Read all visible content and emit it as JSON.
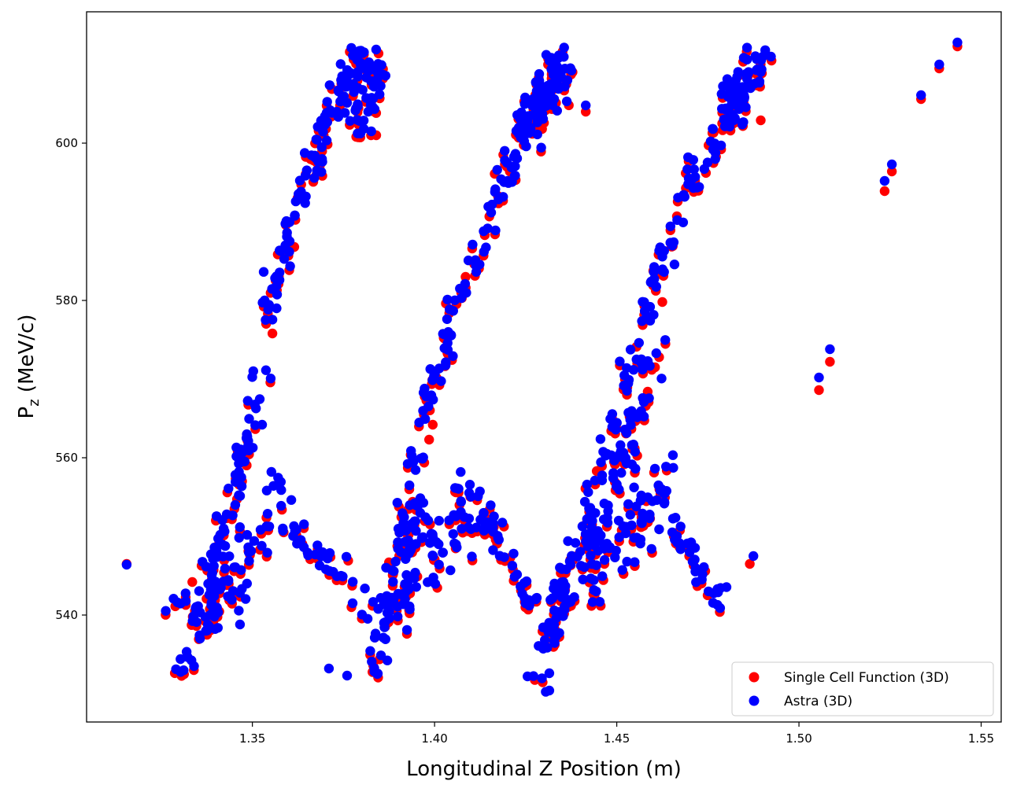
{
  "chart_data": {
    "type": "scatter",
    "title": "",
    "xlabel": "Longitudinal Z Position (m)",
    "ylabel_main": "P",
    "ylabel_sub": "z",
    "ylabel_rest": " (MeV/c)",
    "xlim": [
      1.3045,
      1.5555
    ],
    "ylim": [
      526.4,
      616.7
    ],
    "xticks": [
      1.35,
      1.4,
      1.45,
      1.5,
      1.55
    ],
    "xtick_labels": [
      "1.35",
      "1.40",
      "1.45",
      "1.50",
      "1.55"
    ],
    "yticks": [
      540,
      560,
      580,
      600
    ],
    "ytick_labels": [
      "540",
      "560",
      "580",
      "600"
    ],
    "grid": false,
    "legend_position": "lower-right",
    "series": [
      {
        "name": "Single Cell Function (3D)",
        "color": "#ff0000",
        "dy": -0.5,
        "points": [
          [
            1.3155,
            547.0
          ],
          [
            1.349,
            567.3
          ],
          [
            1.34,
            552.5
          ],
          [
            1.3335,
            544.7
          ],
          [
            1.3555,
            576.3
          ],
          [
            1.3615,
            587.3
          ],
          [
            1.3785,
            601.3
          ],
          [
            1.384,
            601.5
          ],
          [
            1.3875,
            547.2
          ],
          [
            1.3925,
            550.8
          ],
          [
            1.394,
            554.9
          ],
          [
            1.4035,
            573.9
          ],
          [
            1.4075,
            580.8
          ],
          [
            1.4085,
            583.5
          ],
          [
            1.3985,
            562.8
          ],
          [
            1.3995,
            564.7
          ],
          [
            1.4295,
            602.3
          ],
          [
            1.4415,
            604.5
          ],
          [
            1.438,
            547.5
          ],
          [
            1.4565,
            565.5
          ],
          [
            1.4585,
            568.9
          ],
          [
            1.4605,
            572.0
          ],
          [
            1.4665,
            591.2
          ],
          [
            1.4625,
            580.3
          ],
          [
            1.4445,
            558.8
          ],
          [
            1.4865,
            547.0
          ],
          [
            1.4895,
            603.4
          ],
          [
            1.5235,
            594.4
          ],
          [
            1.5255,
            596.9
          ],
          [
            1.5055,
            569.1
          ],
          [
            1.5085,
            572.7
          ],
          [
            1.5335,
            606.1
          ],
          [
            1.5385,
            610.0
          ],
          [
            1.5435,
            612.8
          ],
          [
            1.4375,
            547.6
          ]
        ]
      },
      {
        "name": "Astra (3D)",
        "color": "#0000ff",
        "dy": 0,
        "points": [
          [
            1.3155,
            546.4
          ],
          [
            1.5435,
            612.8
          ],
          [
            1.5385,
            610.0
          ],
          [
            1.5335,
            606.1
          ],
          [
            1.5255,
            597.3
          ],
          [
            1.5235,
            595.2
          ],
          [
            1.5085,
            573.8
          ],
          [
            1.5055,
            570.2
          ],
          [
            1.4875,
            547.5
          ],
          [
            1.4415,
            604.8
          ],
          [
            1.371,
            533.2
          ],
          [
            1.376,
            532.3
          ],
          [
            1.3835,
            532.8
          ],
          [
            1.4255,
            532.2
          ],
          [
            1.4315,
            530.4
          ],
          [
            1.4315,
            532.6
          ]
        ]
      }
    ],
    "clusters": [
      {
        "series": 1,
        "n": 95,
        "seed": 11,
        "x0": 1.3545,
        "y0": 578.0,
        "x1": 1.38,
        "y1": 611.5,
        "curve": -0.45,
        "spread": 1.4
      },
      {
        "series": 1,
        "n": 40,
        "seed": 12,
        "x0": 1.377,
        "y0": 604.0,
        "x1": 1.385,
        "y1": 609.0,
        "curve": 0.0,
        "spread": 2.2
      },
      {
        "series": 1,
        "n": 120,
        "seed": 13,
        "x0": 1.395,
        "y0": 560.5,
        "x1": 1.434,
        "y1": 609.5,
        "curve": -0.4,
        "spread": 1.6
      },
      {
        "series": 1,
        "n": 50,
        "seed": 14,
        "x0": 1.423,
        "y0": 601.0,
        "x1": 1.437,
        "y1": 609.5,
        "curve": 0.0,
        "spread": 2.0
      },
      {
        "series": 1,
        "n": 110,
        "seed": 15,
        "x0": 1.4455,
        "y0": 558.0,
        "x1": 1.488,
        "y1": 610.5,
        "curve": -0.4,
        "spread": 1.6
      },
      {
        "series": 1,
        "n": 45,
        "seed": 16,
        "x0": 1.48,
        "y0": 603.5,
        "x1": 1.492,
        "y1": 611.0,
        "curve": 0.0,
        "spread": 2.0
      },
      {
        "series": 1,
        "n": 60,
        "seed": 21,
        "x0": 1.333,
        "y0": 533.5,
        "x1": 1.3475,
        "y1": 562.5,
        "curve": 0.0,
        "spread": 2.8
      },
      {
        "series": 1,
        "n": 25,
        "seed": 22,
        "x0": 1.346,
        "y0": 556.0,
        "x1": 1.3525,
        "y1": 570.5,
        "curve": 0.0,
        "spread": 1.2
      },
      {
        "series": 1,
        "n": 55,
        "seed": 23,
        "x0": 1.338,
        "y0": 541.0,
        "x1": 1.358,
        "y1": 555.5,
        "curve": 0.15,
        "spread": 2.6
      },
      {
        "series": 1,
        "n": 30,
        "seed": 24,
        "x0": 1.359,
        "y0": 551.5,
        "x1": 1.38,
        "y1": 541.5,
        "curve": 0.2,
        "spread": 1.0
      },
      {
        "series": 1,
        "n": 6,
        "seed": 25,
        "x0": 1.327,
        "y0": 541.0,
        "x1": 1.332,
        "y1": 542.3,
        "curve": 0.0,
        "spread": 0.3
      },
      {
        "series": 1,
        "n": 6,
        "seed": 26,
        "x0": 1.3285,
        "y0": 533.0,
        "x1": 1.334,
        "y1": 534.0,
        "curve": 0.0,
        "spread": 0.6
      },
      {
        "series": 1,
        "n": 70,
        "seed": 31,
        "x0": 1.383,
        "y0": 534.5,
        "x1": 1.396,
        "y1": 556.0,
        "curve": 0.0,
        "spread": 3.0
      },
      {
        "series": 1,
        "n": 60,
        "seed": 32,
        "x0": 1.389,
        "y0": 543.0,
        "x1": 1.413,
        "y1": 556.0,
        "curve": 0.2,
        "spread": 2.6
      },
      {
        "series": 1,
        "n": 30,
        "seed": 33,
        "x0": 1.412,
        "y0": 553.5,
        "x1": 1.425,
        "y1": 541.8,
        "curve": 0.25,
        "spread": 1.2
      },
      {
        "series": 1,
        "n": 8,
        "seed": 34,
        "x0": 1.423,
        "y0": 541.8,
        "x1": 1.429,
        "y1": 541.8,
        "curve": 0.0,
        "spread": 0.3
      },
      {
        "series": 1,
        "n": 70,
        "seed": 41,
        "x0": 1.429,
        "y0": 535.0,
        "x1": 1.444,
        "y1": 552.5,
        "curve": 0.0,
        "spread": 3.0
      },
      {
        "series": 1,
        "n": 35,
        "seed": 42,
        "x0": 1.443,
        "y0": 550.0,
        "x1": 1.454,
        "y1": 562.5,
        "curve": 0.0,
        "spread": 2.2
      },
      {
        "series": 1,
        "n": 65,
        "seed": 43,
        "x0": 1.442,
        "y0": 546.0,
        "x1": 1.464,
        "y1": 556.5,
        "curve": 0.2,
        "spread": 2.6
      },
      {
        "series": 1,
        "n": 30,
        "seed": 44,
        "x0": 1.464,
        "y0": 551.5,
        "x1": 1.478,
        "y1": 542.0,
        "curve": 0.25,
        "spread": 1.1
      },
      {
        "series": 1,
        "n": 20,
        "seed": 45,
        "x0": 1.453,
        "y0": 562.5,
        "x1": 1.461,
        "y1": 574.0,
        "curve": 0.0,
        "spread": 1.2
      }
    ]
  },
  "legend": {
    "entries": [
      {
        "label": "Single Cell Function (3D)",
        "color": "#ff0000"
      },
      {
        "label": "Astra (3D)",
        "color": "#0000ff"
      }
    ]
  }
}
